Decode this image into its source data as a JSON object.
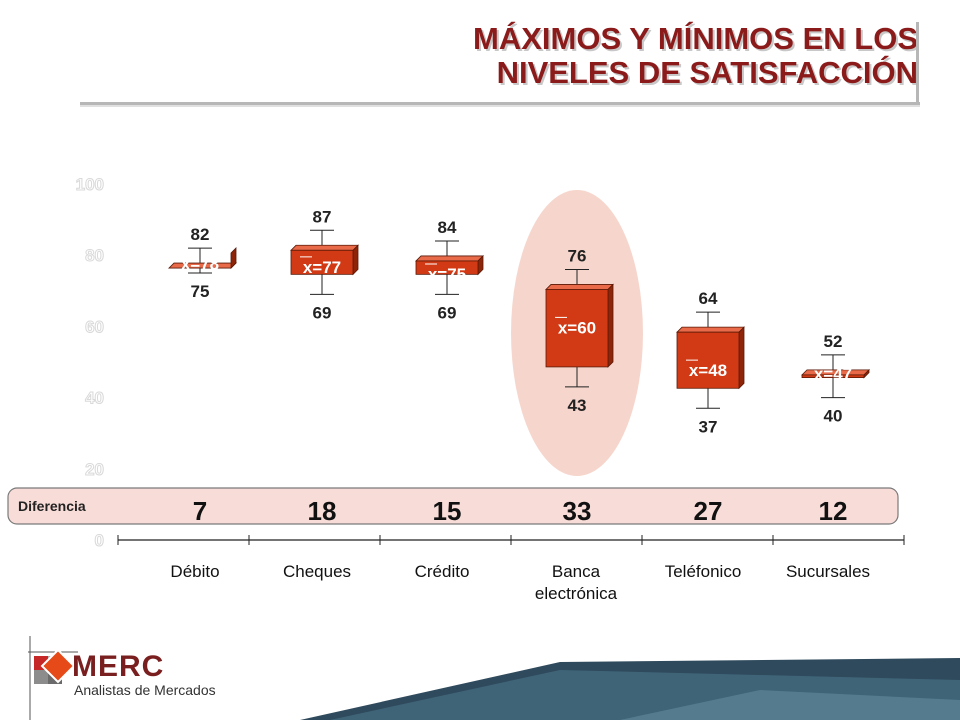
{
  "title": {
    "line1": "MÁXIMOS Y MÍNIMOS EN LOS",
    "line2": "NIVELES DE SATISFACCIÓN"
  },
  "colors": {
    "title": "#8b1a1a",
    "box_front": "#d13a14",
    "box_side": "#8e2408",
    "highlight": "#f6d6cc",
    "diff_band": "#f8dcd8"
  },
  "chart_data": {
    "type": "box",
    "ylim": [
      0,
      100
    ],
    "yticks": [
      "0",
      "20",
      "40",
      "60",
      "80",
      "100"
    ],
    "categories": [
      "Débito",
      "Cheques",
      "Crédito",
      "Banca electrónica",
      "Teléfonico",
      "Sucursales"
    ],
    "category_lines": [
      [
        "Débito"
      ],
      [
        "Cheques"
      ],
      [
        "Crédito"
      ],
      [
        "Banca",
        "electrónica"
      ],
      [
        "Teléfonico"
      ],
      [
        "Sucursales"
      ]
    ],
    "series": [
      {
        "category": "Débito",
        "max": 82,
        "min": 75,
        "mean": 78,
        "mean_label": "x=78",
        "max_label": "82",
        "min_label": "75"
      },
      {
        "category": "Cheques",
        "max": 87,
        "min": 69,
        "mean": 77,
        "mean_label": "x=77",
        "max_label": "87",
        "min_label": "69"
      },
      {
        "category": "Crédito",
        "max": 84,
        "min": 69,
        "mean": 75,
        "mean_label": "x=75",
        "max_label": "84",
        "min_label": "69"
      },
      {
        "category": "Banca electrónica",
        "max": 76,
        "min": 43,
        "mean": 60,
        "mean_label": "x=60",
        "max_label": "76",
        "min_label": "43"
      },
      {
        "category": "Teléfonico",
        "max": 64,
        "min": 37,
        "mean": 48,
        "mean_label": "x=48",
        "max_label": "64",
        "min_label": "37"
      },
      {
        "category": "Sucursales",
        "max": 52,
        "min": 40,
        "mean": 47,
        "mean_label": "x=47",
        "max_label": "52",
        "min_label": "40"
      }
    ],
    "difference_label": "Diferencia",
    "differences": [
      "7",
      "18",
      "15",
      "33",
      "27",
      "12"
    ],
    "highlighted_category": "Banca electrónica"
  },
  "logo": {
    "word": "MERC",
    "subtitle": "Analistas de Mercados"
  }
}
